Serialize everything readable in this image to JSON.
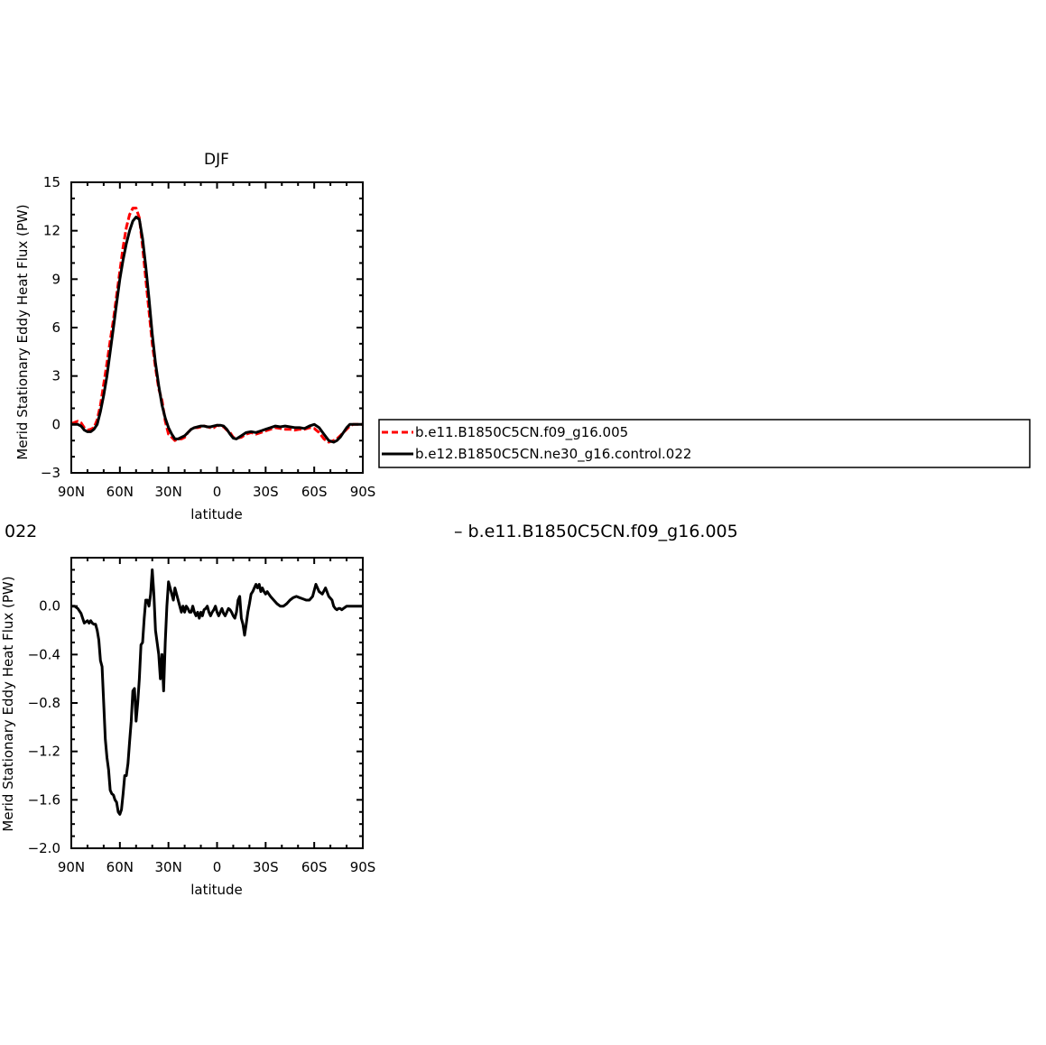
{
  "figure": {
    "fragment_left": "022",
    "fragment_right": "– b.e11.B1850C5CN.f09_g16.005"
  },
  "chart_data": [
    {
      "type": "line",
      "title": "DJF",
      "xlabel": "latitude",
      "ylabel": "Merid Stationary Eddy Heat Flux (PW)",
      "xlim": [
        90,
        -90
      ],
      "ylim": [
        -3,
        15
      ],
      "xtick_values": [
        90,
        60,
        30,
        0,
        -30,
        -60,
        -90
      ],
      "xtick_labels": [
        "90N",
        "60N",
        "30N",
        "0",
        "30S",
        "60S",
        "90S"
      ],
      "ytick_values": [
        -3,
        0,
        3,
        6,
        9,
        12,
        15
      ],
      "ytick_labels": [
        "−3",
        "0",
        "3",
        "6",
        "9",
        "12",
        "15"
      ],
      "legend": {
        "placement": "right",
        "entries": [
          "b.e11.B1850C5CN.f09_g16.005",
          "b.e12.B1850C5CN.ne30_g16.control.022"
        ]
      },
      "series": [
        {
          "name": "b.e11.B1850C5CN.f09_g16.005",
          "color": "#ff0000",
          "dash": "dashed",
          "x": [
            90,
            86,
            84,
            82,
            80,
            78,
            76,
            74,
            72,
            70,
            68,
            66,
            64,
            62,
            60,
            58,
            56,
            54,
            52,
            50,
            48,
            46,
            44,
            42,
            40,
            38,
            36,
            34,
            32,
            30,
            28,
            26,
            24,
            22,
            20,
            18,
            16,
            14,
            12,
            10,
            8,
            6,
            4,
            2,
            0,
            -2,
            -4,
            -6,
            -8,
            -10,
            -12,
            -15,
            -18,
            -21,
            -24,
            -27,
            -30,
            -33,
            -36,
            -39,
            -42,
            -45,
            -48,
            -51,
            -54,
            -57,
            -60,
            -63,
            -66,
            -69,
            -72,
            -74,
            -76,
            -78,
            -80,
            -82,
            -84,
            -86,
            -88,
            -90
          ],
          "y": [
            0.05,
            0.2,
            0.1,
            -0.2,
            -0.35,
            -0.3,
            -0.2,
            0.3,
            1.2,
            2.5,
            3.8,
            5.2,
            6.5,
            8.0,
            9.5,
            11.0,
            12.2,
            13.0,
            13.4,
            13.4,
            12.8,
            11.0,
            9.0,
            7.0,
            5.0,
            3.5,
            2.2,
            1.5,
            0.2,
            -0.6,
            -0.8,
            -1.0,
            -0.9,
            -0.9,
            -0.8,
            -0.5,
            -0.3,
            -0.2,
            -0.2,
            -0.15,
            -0.1,
            -0.15,
            -0.2,
            -0.2,
            -0.05,
            -0.1,
            -0.15,
            -0.35,
            -0.5,
            -0.8,
            -0.85,
            -0.8,
            -0.6,
            -0.5,
            -0.6,
            -0.5,
            -0.4,
            -0.3,
            -0.2,
            -0.25,
            -0.3,
            -0.3,
            -0.35,
            -0.3,
            -0.3,
            -0.2,
            -0.25,
            -0.5,
            -0.9,
            -1.1,
            -1.0,
            -0.9,
            -0.7,
            -0.5,
            -0.3,
            -0.1,
            0.0,
            0.0,
            0.0,
            0.0
          ]
        },
        {
          "name": "b.e12.B1850C5CN.ne30_g16.control.022",
          "color": "#000000",
          "dash": "solid",
          "x": [
            90,
            86,
            84,
            82,
            80,
            78,
            76,
            74,
            72,
            70,
            68,
            66,
            64,
            62,
            60,
            58,
            56,
            54,
            52,
            50,
            48,
            46,
            44,
            42,
            40,
            38,
            36,
            34,
            32,
            30,
            28,
            26,
            24,
            22,
            20,
            18,
            16,
            14,
            12,
            10,
            8,
            6,
            4,
            2,
            0,
            -2,
            -4,
            -6,
            -8,
            -10,
            -12,
            -15,
            -18,
            -21,
            -24,
            -27,
            -30,
            -33,
            -36,
            -39,
            -42,
            -45,
            -48,
            -51,
            -54,
            -57,
            -60,
            -63,
            -66,
            -69,
            -72,
            -74,
            -76,
            -78,
            -80,
            -82,
            -84,
            -86,
            -88,
            -90
          ],
          "y": [
            0.0,
            0.0,
            -0.1,
            -0.35,
            -0.45,
            -0.45,
            -0.3,
            0.0,
            0.8,
            1.8,
            3.0,
            4.5,
            6.0,
            7.5,
            9.0,
            10.2,
            11.2,
            12.0,
            12.6,
            12.85,
            12.7,
            11.5,
            9.8,
            7.8,
            5.6,
            3.8,
            2.4,
            1.2,
            0.4,
            -0.2,
            -0.6,
            -0.9,
            -0.9,
            -0.8,
            -0.7,
            -0.5,
            -0.3,
            -0.2,
            -0.15,
            -0.1,
            -0.1,
            -0.15,
            -0.15,
            -0.1,
            -0.05,
            -0.05,
            -0.1,
            -0.3,
            -0.6,
            -0.85,
            -0.9,
            -0.7,
            -0.5,
            -0.45,
            -0.5,
            -0.4,
            -0.3,
            -0.2,
            -0.1,
            -0.15,
            -0.1,
            -0.15,
            -0.2,
            -0.2,
            -0.25,
            -0.1,
            0.0,
            -0.2,
            -0.6,
            -1.0,
            -1.1,
            -1.0,
            -0.8,
            -0.5,
            -0.2,
            0.0,
            0.0,
            0.0,
            0.0,
            0.0
          ]
        }
      ]
    },
    {
      "type": "line",
      "title": "",
      "xlabel": "latitude",
      "ylabel": "Merid Stationary Eddy Heat Flux (PW)",
      "xlim": [
        90,
        -90
      ],
      "ylim": [
        -2.0,
        0.4
      ],
      "xtick_values": [
        90,
        60,
        30,
        0,
        -30,
        -60,
        -90
      ],
      "xtick_labels": [
        "90N",
        "60N",
        "30N",
        "0",
        "30S",
        "60S",
        "90S"
      ],
      "ytick_values": [
        -2.0,
        -1.6,
        -1.2,
        -0.8,
        -0.4,
        0.0
      ],
      "ytick_labels": [
        "−2.0",
        "−1.6",
        "−1.2",
        "−0.8",
        "−0.4",
        "0.0"
      ],
      "series": [
        {
          "color": "#000000",
          "dash": "solid",
          "x": [
            90,
            88,
            86,
            84,
            83,
            82,
            81,
            80,
            79,
            78,
            77,
            76,
            75,
            74,
            73,
            72,
            71,
            70,
            69,
            68,
            67,
            66,
            65,
            64,
            63,
            62,
            61,
            60,
            59,
            58,
            57,
            56,
            55,
            54,
            53,
            52,
            51,
            50,
            49,
            48,
            47,
            46,
            45,
            44,
            43,
            42,
            41,
            40,
            39,
            38,
            37,
            36,
            35,
            34,
            33,
            32,
            31,
            30,
            29,
            28,
            27,
            26,
            25,
            24,
            23,
            22,
            21,
            20,
            19,
            18,
            17,
            16,
            15,
            14,
            13,
            12,
            11,
            10,
            9,
            8,
            7,
            6,
            5,
            4,
            3,
            2,
            1,
            0,
            -1,
            -2,
            -3,
            -4,
            -5,
            -6,
            -7,
            -8,
            -9,
            -10,
            -11,
            -12,
            -13,
            -14,
            -15,
            -16,
            -17,
            -18,
            -19,
            -20,
            -21,
            -22,
            -23,
            -24,
            -25,
            -26,
            -27,
            -28,
            -29,
            -30,
            -31,
            -32,
            -33,
            -35,
            -37,
            -39,
            -41,
            -43,
            -45,
            -47,
            -49,
            -51,
            -53,
            -55,
            -57,
            -59,
            -61,
            -63,
            -65,
            -67,
            -69,
            -71,
            -72,
            -73,
            -74,
            -75,
            -76,
            -77,
            -78,
            -79,
            -80,
            -81,
            -82,
            -83,
            -84,
            -85,
            -86,
            -87,
            -88,
            -90
          ],
          "y": [
            0.0,
            0.0,
            -0.02,
            -0.06,
            -0.1,
            -0.14,
            -0.13,
            -0.12,
            -0.14,
            -0.12,
            -0.14,
            -0.15,
            -0.15,
            -0.2,
            -0.28,
            -0.45,
            -0.5,
            -0.8,
            -1.1,
            -1.25,
            -1.35,
            -1.52,
            -1.55,
            -1.56,
            -1.6,
            -1.62,
            -1.7,
            -1.72,
            -1.68,
            -1.55,
            -1.4,
            -1.4,
            -1.3,
            -1.12,
            -0.95,
            -0.7,
            -0.68,
            -0.95,
            -0.8,
            -0.6,
            -0.32,
            -0.3,
            -0.1,
            0.05,
            0.05,
            0.0,
            0.1,
            0.3,
            0.1,
            -0.2,
            -0.3,
            -0.4,
            -0.6,
            -0.4,
            -0.7,
            -0.3,
            0.0,
            0.2,
            0.15,
            0.1,
            0.05,
            0.15,
            0.1,
            0.05,
            0.0,
            -0.05,
            0.0,
            -0.05,
            0.0,
            -0.02,
            -0.05,
            -0.05,
            0.0,
            -0.05,
            -0.08,
            -0.05,
            -0.1,
            -0.05,
            -0.08,
            -0.03,
            -0.02,
            0.0,
            -0.05,
            -0.08,
            -0.05,
            -0.03,
            0.0,
            -0.05,
            -0.08,
            -0.05,
            -0.02,
            -0.06,
            -0.08,
            -0.05,
            -0.02,
            -0.03,
            -0.05,
            -0.08,
            -0.1,
            -0.05,
            0.05,
            0.08,
            -0.1,
            -0.15,
            -0.24,
            -0.15,
            -0.05,
            0.02,
            0.1,
            0.12,
            0.15,
            0.18,
            0.15,
            0.18,
            0.12,
            0.15,
            0.12,
            0.1,
            0.12,
            0.1,
            0.08,
            0.05,
            0.02,
            0.0,
            0.0,
            0.02,
            0.05,
            0.07,
            0.08,
            0.07,
            0.06,
            0.05,
            0.05,
            0.08,
            0.18,
            0.12,
            0.1,
            0.15,
            0.08,
            0.05,
            0.0,
            -0.02,
            -0.03,
            -0.02,
            -0.02,
            -0.03,
            -0.02,
            -0.01,
            0.0,
            0.0,
            0.0,
            0.0,
            0.0,
            0.0,
            0.0,
            0.0,
            0.0,
            0.0
          ]
        }
      ]
    }
  ]
}
